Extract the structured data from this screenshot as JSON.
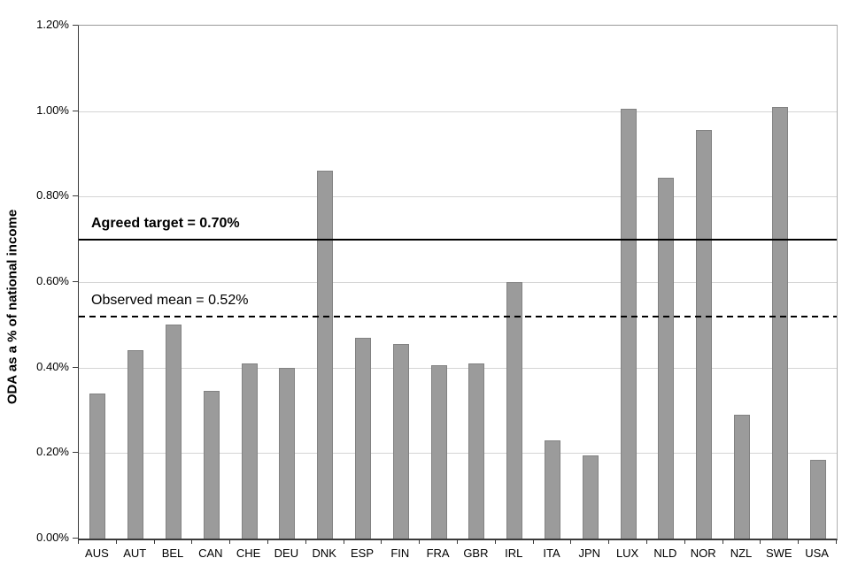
{
  "chart_data": {
    "type": "bar",
    "title": "",
    "xlabel": "",
    "ylabel": "ODA as a % of national income",
    "categories": [
      "AUS",
      "AUT",
      "BEL",
      "CAN",
      "CHE",
      "DEU",
      "DNK",
      "ESP",
      "FIN",
      "FRA",
      "GBR",
      "IRL",
      "ITA",
      "JPN",
      "LUX",
      "NLD",
      "NOR",
      "NZL",
      "SWE",
      "USA"
    ],
    "values": [
      0.34,
      0.44,
      0.5,
      0.345,
      0.41,
      0.4,
      0.86,
      0.47,
      0.455,
      0.405,
      0.41,
      0.6,
      0.23,
      0.195,
      1.005,
      0.845,
      0.955,
      0.29,
      1.01,
      0.185
    ],
    "value_unit": "percent of national income",
    "ylim": [
      0,
      1.2
    ],
    "ytick_step": 0.2,
    "ytick_labels": [
      "0.00%",
      "0.20%",
      "0.40%",
      "0.60%",
      "0.80%",
      "1.00%",
      "1.20%"
    ],
    "grid": true,
    "legend_position": "none",
    "reference_lines": [
      {
        "name": "agreed-target",
        "value": 0.7,
        "label": "Agreed target = 0.70%",
        "style": "solid",
        "bold": true
      },
      {
        "name": "observed-mean",
        "value": 0.52,
        "label": "Observed mean = 0.52%",
        "style": "dashed",
        "bold": false
      }
    ],
    "colors": {
      "bar_fill": "#9b9b9b",
      "bar_border": "#828282",
      "gridline": "#d4d4d4",
      "axis_line": "#3a3a3a",
      "reference_line": "#000000",
      "background": "#ffffff",
      "text": "#000000"
    }
  }
}
